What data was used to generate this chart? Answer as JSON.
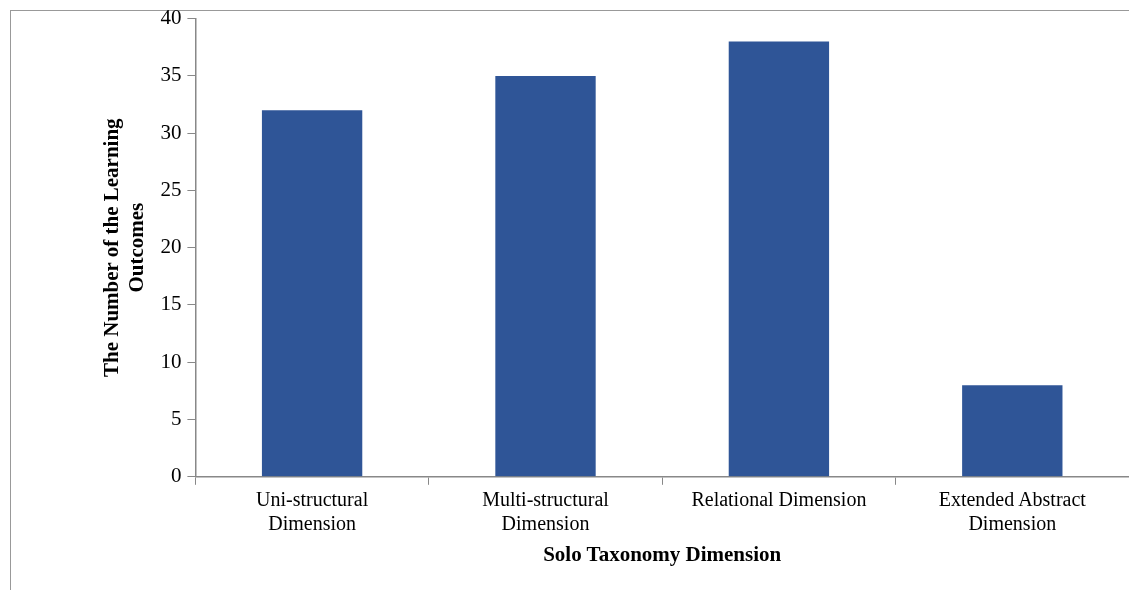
{
  "chart_data": {
    "type": "bar",
    "xlabel": "Solo Taxonomy Dimension",
    "ylabel": "The Number of the Learning Outcomes",
    "categories": [
      "Uni-structural Dimension",
      "Multi-structural Dimension",
      "Relational Dimension",
      "Extended Abstract Dimension"
    ],
    "values": [
      32,
      35,
      38,
      8
    ],
    "color": "#2f5597",
    "ylim": [
      0,
      40
    ],
    "yticks": [
      0,
      5,
      10,
      15,
      20,
      25,
      30,
      35,
      40
    ],
    "grid": false,
    "legend": false
  }
}
